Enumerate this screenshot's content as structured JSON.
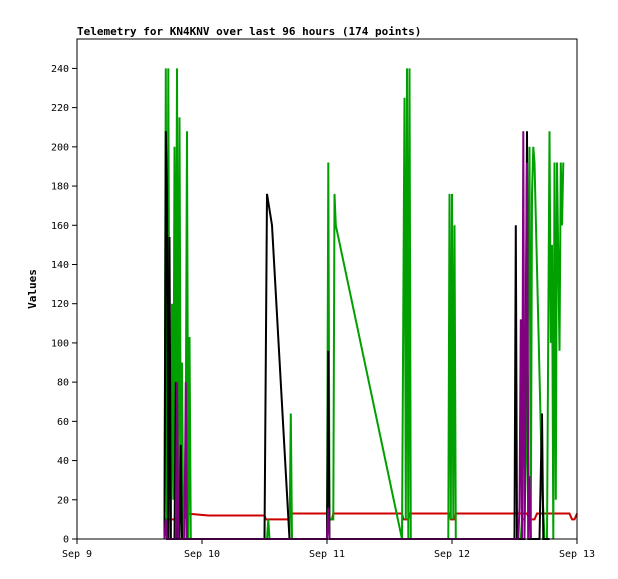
{
  "chart_data": {
    "type": "line",
    "title": "Telemetry for KN4KNV over last 96 hours (174 points)",
    "xlabel": "",
    "ylabel": "Values",
    "xlim": [
      0,
      4
    ],
    "ylim": [
      0,
      255
    ],
    "x_ticks": [
      {
        "value": 0,
        "label": "Sep 9"
      },
      {
        "value": 1,
        "label": "Sep 10"
      },
      {
        "value": 2,
        "label": "Sep 11"
      },
      {
        "value": 3,
        "label": "Sep 12"
      },
      {
        "value": 4,
        "label": "Sep 13"
      }
    ],
    "y_ticks": [
      0,
      20,
      40,
      60,
      80,
      100,
      120,
      140,
      160,
      180,
      200,
      220,
      240
    ],
    "grid": false,
    "legend": "none",
    "series": [
      {
        "color": "#cc0000",
        "points": [
          [
            0.7,
            0
          ],
          [
            0.71,
            10
          ],
          [
            0.86,
            10
          ],
          [
            0.87,
            13
          ],
          [
            1.05,
            12
          ],
          [
            1.5,
            12
          ],
          [
            1.51,
            10
          ],
          [
            1.7,
            10
          ],
          [
            1.71,
            13
          ],
          [
            2.0,
            13
          ],
          [
            2.01,
            10
          ],
          [
            2.04,
            10
          ],
          [
            2.05,
            13
          ],
          [
            2.6,
            13
          ],
          [
            2.61,
            10
          ],
          [
            2.65,
            10
          ],
          [
            2.66,
            13
          ],
          [
            2.98,
            13
          ],
          [
            2.99,
            10
          ],
          [
            3.02,
            10
          ],
          [
            3.03,
            13
          ],
          [
            3.6,
            13
          ],
          [
            3.62,
            10
          ],
          [
            3.66,
            10
          ],
          [
            3.68,
            13
          ],
          [
            3.94,
            13
          ],
          [
            3.96,
            10
          ],
          [
            3.98,
            10
          ],
          [
            4.0,
            13
          ]
        ]
      },
      {
        "color": "#00a000",
        "points": [
          [
            0.7,
            0
          ],
          [
            0.71,
            240
          ],
          [
            0.72,
            0
          ],
          [
            0.73,
            240
          ],
          [
            0.74,
            50
          ],
          [
            0.75,
            0
          ],
          [
            0.76,
            120
          ],
          [
            0.77,
            20
          ],
          [
            0.78,
            200
          ],
          [
            0.79,
            60
          ],
          [
            0.8,
            240
          ],
          [
            0.81,
            0
          ],
          [
            0.82,
            215
          ],
          [
            0.83,
            30
          ],
          [
            0.84,
            90
          ],
          [
            0.85,
            0
          ],
          [
            0.86,
            10
          ],
          [
            0.87,
            60
          ],
          [
            0.88,
            208
          ],
          [
            0.89,
            0
          ],
          [
            0.9,
            103
          ],
          [
            0.91,
            0
          ],
          [
            1.52,
            0
          ],
          [
            1.53,
            10
          ],
          [
            1.54,
            0
          ],
          [
            1.7,
            0
          ],
          [
            1.71,
            64
          ],
          [
            1.72,
            0
          ],
          [
            2.0,
            0
          ],
          [
            2.01,
            192
          ],
          [
            2.02,
            10
          ],
          [
            2.05,
            10
          ],
          [
            2.06,
            176
          ],
          [
            2.07,
            160
          ],
          [
            2.6,
            0
          ],
          [
            2.62,
            225
          ],
          [
            2.63,
            10
          ],
          [
            2.64,
            240
          ],
          [
            2.65,
            0
          ],
          [
            2.66,
            240
          ],
          [
            2.67,
            0
          ],
          [
            2.97,
            0
          ],
          [
            2.98,
            176
          ],
          [
            2.99,
            10
          ],
          [
            3.0,
            176
          ],
          [
            3.01,
            10
          ],
          [
            3.02,
            160
          ],
          [
            3.03,
            0
          ],
          [
            3.52,
            0
          ],
          [
            3.55,
            0
          ],
          [
            3.56,
            10
          ],
          [
            3.58,
            10
          ],
          [
            3.6,
            60
          ],
          [
            3.62,
            200
          ],
          [
            3.63,
            0
          ],
          [
            3.64,
            176
          ],
          [
            3.65,
            200
          ],
          [
            3.66,
            192
          ],
          [
            3.72,
            30
          ],
          [
            3.74,
            0
          ],
          [
            3.76,
            0
          ],
          [
            3.78,
            208
          ],
          [
            3.79,
            100
          ],
          [
            3.8,
            150
          ],
          [
            3.81,
            0
          ],
          [
            3.82,
            192
          ],
          [
            3.83,
            20
          ],
          [
            3.84,
            192
          ],
          [
            3.86,
            96
          ],
          [
            3.87,
            192
          ],
          [
            3.88,
            160
          ],
          [
            3.89,
            192
          ]
        ]
      },
      {
        "color": "#000000",
        "points": [
          [
            0.7,
            0
          ],
          [
            0.71,
            208
          ],
          [
            0.72,
            176
          ],
          [
            0.73,
            0
          ],
          [
            0.74,
            154
          ],
          [
            0.75,
            0
          ],
          [
            0.78,
            0
          ],
          [
            0.79,
            80
          ],
          [
            0.8,
            0
          ],
          [
            0.82,
            0
          ],
          [
            0.83,
            48
          ],
          [
            0.84,
            0
          ],
          [
            1.5,
            0
          ],
          [
            1.52,
            176
          ],
          [
            1.56,
            160
          ],
          [
            1.7,
            0
          ],
          [
            1.72,
            0
          ],
          [
            2.0,
            0
          ],
          [
            2.01,
            96
          ],
          [
            2.02,
            0
          ],
          [
            3.5,
            0
          ],
          [
            3.51,
            160
          ],
          [
            3.52,
            0
          ],
          [
            3.58,
            0
          ],
          [
            3.6,
            208
          ],
          [
            3.61,
            0
          ],
          [
            3.7,
            0
          ],
          [
            3.72,
            64
          ],
          [
            3.73,
            0
          ],
          [
            3.78,
            0
          ]
        ]
      },
      {
        "color": "#800080",
        "points": [
          [
            0.7,
            0
          ],
          [
            0.71,
            10
          ],
          [
            0.72,
            0
          ],
          [
            0.79,
            0
          ],
          [
            0.8,
            80
          ],
          [
            0.81,
            0
          ],
          [
            0.86,
            0
          ],
          [
            0.87,
            80
          ],
          [
            0.88,
            0
          ],
          [
            2.0,
            0
          ],
          [
            2.01,
            16
          ],
          [
            2.02,
            0
          ],
          [
            3.53,
            0
          ],
          [
            3.54,
            16
          ],
          [
            3.55,
            112
          ],
          [
            3.56,
            0
          ],
          [
            3.57,
            208
          ],
          [
            3.58,
            0
          ],
          [
            3.6,
            192
          ],
          [
            3.61,
            0
          ],
          [
            3.62,
            32
          ],
          [
            3.63,
            0
          ]
        ]
      }
    ]
  }
}
